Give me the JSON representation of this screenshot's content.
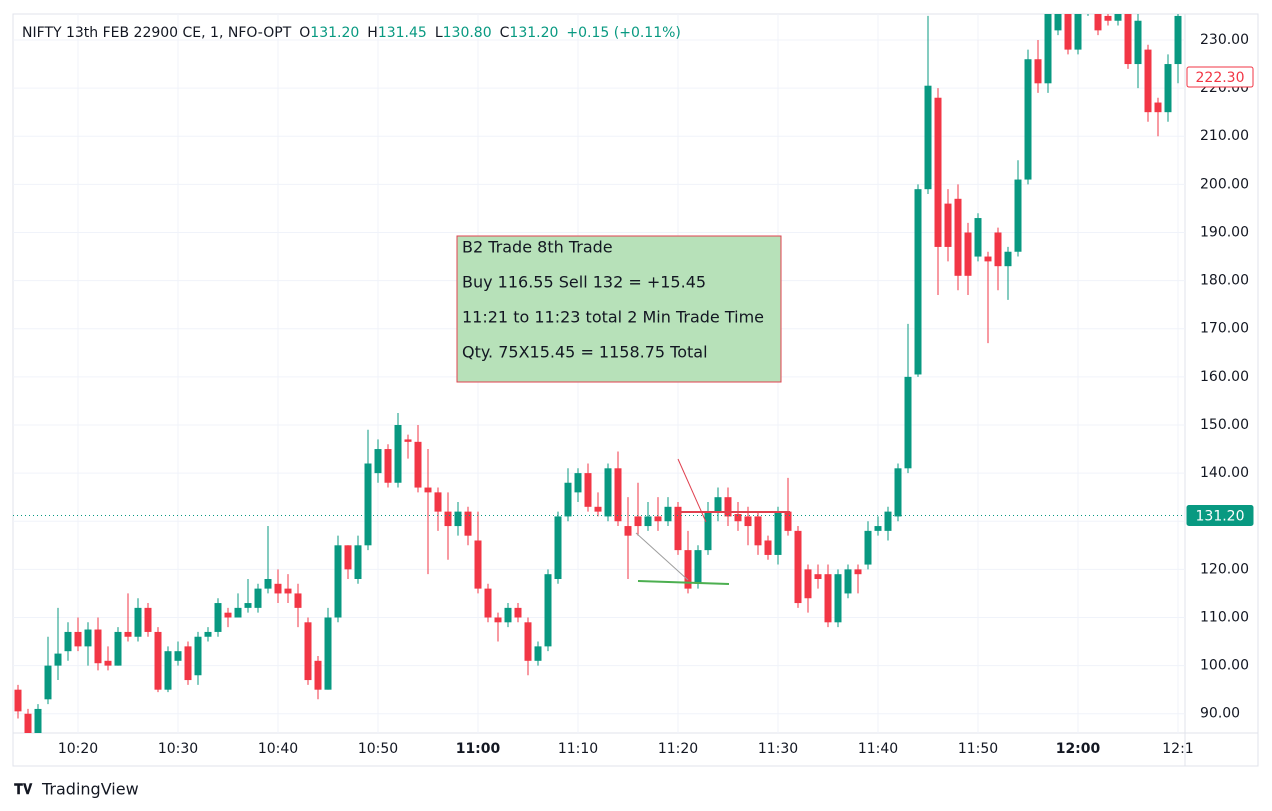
{
  "chart_data": {
    "type": "candlestick",
    "title": "NIFTY 13th FEB 22900 CE, 1, NFO-OPT",
    "ohlc_header": {
      "o_key": "O",
      "o": "131.20",
      "h_key": "H",
      "h": "131.45",
      "l_key": "L",
      "l": "130.80",
      "c_key": "C",
      "c": "131.20",
      "change": "+0.15 (+0.11%)"
    },
    "categories": [
      null,
      null,
      null,
      null,
      null,
      null,
      "10:20",
      null,
      null,
      null,
      null,
      null,
      null,
      null,
      null,
      null,
      "10:30",
      null,
      null,
      null,
      null,
      null,
      null,
      null,
      null,
      null,
      "10:40",
      null,
      null,
      null,
      null,
      null,
      null,
      null,
      null,
      null,
      "10:50",
      null,
      null,
      null,
      null,
      null,
      null,
      null,
      null,
      null,
      "11:00",
      null,
      null,
      null,
      null,
      null,
      null,
      null,
      null,
      null,
      "11:10",
      null,
      null,
      null,
      null,
      null,
      null,
      null,
      null,
      null,
      "11:20",
      null,
      null,
      null,
      null,
      null,
      null,
      null,
      null,
      null,
      "11:30",
      null,
      null,
      null,
      null,
      null,
      null,
      null,
      null,
      null,
      "11:40",
      null,
      null,
      null,
      null,
      null,
      null,
      null,
      null,
      null,
      "11:50",
      null,
      null,
      null,
      null,
      null,
      null,
      null,
      null,
      null,
      "12:00",
      null,
      null,
      null,
      null,
      null,
      null,
      null,
      null,
      null,
      "12:1"
    ],
    "open": [
      95,
      90,
      86,
      93,
      100,
      103,
      107,
      104,
      107.5,
      101,
      100,
      107,
      106,
      112,
      107,
      95,
      101,
      104,
      98,
      106,
      107,
      111,
      110,
      112,
      112,
      116,
      117,
      116,
      115,
      109,
      101,
      95,
      110,
      125,
      118,
      125,
      140,
      145,
      138,
      147,
      146.5,
      137,
      136,
      132,
      129,
      132,
      126,
      116,
      110,
      109,
      112,
      109,
      101,
      104,
      118,
      131,
      136,
      140,
      133,
      131,
      141,
      129,
      131,
      129,
      131,
      130,
      133,
      124,
      117,
      124,
      132,
      135,
      131.5,
      131,
      131,
      126,
      123,
      132,
      128,
      120,
      119,
      119,
      109,
      115,
      120,
      121,
      128,
      128,
      131,
      141,
      160.5,
      199,
      218,
      196,
      197,
      190,
      185,
      185,
      190,
      183,
      186,
      201,
      226,
      221,
      232,
      236,
      228,
      236,
      240,
      235,
      234,
      236,
      225,
      228,
      217,
      215,
      225
    ],
    "high": [
      96,
      91,
      92,
      106,
      112,
      109,
      110,
      109,
      110,
      104,
      108,
      115,
      114,
      113,
      108,
      104,
      105,
      105,
      107,
      108,
      114,
      112,
      115,
      118,
      117,
      129,
      120,
      119,
      117,
      110,
      102,
      112,
      127,
      125,
      127,
      149,
      147,
      146,
      152.5,
      148,
      150,
      145,
      137,
      136,
      134,
      133,
      132,
      117,
      111,
      113,
      113,
      110,
      105,
      120,
      132,
      141,
      141,
      142,
      136,
      142,
      144.5,
      135,
      138,
      134,
      135,
      135,
      134,
      128,
      125,
      134,
      137,
      137,
      134,
      133,
      132,
      127,
      133,
      139,
      129,
      121,
      121,
      121,
      120,
      121,
      121,
      130,
      131,
      133,
      142,
      171,
      200,
      235,
      220,
      199,
      200,
      192,
      194,
      186,
      191,
      187,
      205,
      228,
      230,
      236,
      242,
      238,
      240,
      242,
      241,
      236,
      240,
      237,
      236,
      229,
      218,
      227,
      236
    ],
    "low": [
      89,
      84,
      85,
      92,
      97,
      101,
      103,
      100,
      99,
      99,
      100,
      105,
      105,
      106,
      94.5,
      94.5,
      100,
      96,
      96,
      105,
      106,
      108,
      110,
      111,
      111,
      115,
      113,
      113,
      108,
      96,
      93,
      95,
      109,
      118,
      117,
      124,
      138,
      137,
      137,
      143,
      136,
      119,
      128,
      122,
      127,
      125,
      115,
      109,
      105,
      108,
      109,
      98,
      100,
      103,
      117,
      130,
      134,
      132,
      131,
      130,
      129,
      118,
      127,
      128,
      128,
      129,
      123,
      115,
      116,
      123,
      130,
      129,
      128,
      125,
      123,
      122,
      121,
      127,
      112,
      111,
      116,
      108,
      108,
      114,
      115,
      120,
      127,
      126,
      130,
      140,
      160,
      198,
      177,
      184,
      178,
      177,
      184,
      167,
      178,
      176,
      185,
      200,
      219,
      219,
      231,
      227,
      227,
      235,
      231,
      233,
      233,
      224,
      220,
      213,
      210,
      213,
      221
    ],
    "close": [
      90.5,
      86,
      91,
      100,
      102.5,
      107,
      104,
      107.5,
      100.5,
      100,
      107,
      106,
      112,
      107,
      95,
      103,
      103,
      97,
      106,
      107,
      113,
      110,
      112,
      113,
      116,
      118,
      115,
      115,
      112,
      97,
      95,
      110,
      125,
      120,
      125,
      142,
      145,
      138,
      150,
      146.5,
      137,
      136,
      132,
      129,
      132,
      127,
      116,
      110,
      109,
      112,
      110,
      101,
      104,
      119,
      131,
      138,
      140,
      133,
      132,
      141,
      130,
      127,
      129,
      131,
      130,
      133,
      124,
      116,
      124,
      132,
      135,
      131,
      130,
      129,
      125,
      123,
      132,
      128,
      113,
      114,
      118,
      109,
      119,
      120,
      119,
      128,
      129,
      132,
      141,
      160,
      199,
      220.5,
      187,
      187,
      181,
      181,
      193,
      184,
      183,
      186,
      201,
      226,
      221,
      236,
      240,
      228,
      236,
      240,
      232,
      234,
      238,
      225,
      234,
      215,
      215,
      225,
      235
    ],
    "up_color": "#089981",
    "down_color": "#f23645",
    "ylim": [
      86,
      235.4
    ],
    "yticks": [
      {
        "value": 90,
        "label": "90.00"
      },
      {
        "value": 100,
        "label": "100.00"
      },
      {
        "value": 110,
        "label": "110.00"
      },
      {
        "value": 120,
        "label": "120.00"
      },
      {
        "value": 130,
        "label": "130.00"
      },
      {
        "value": 140,
        "label": "140.00"
      },
      {
        "value": 150,
        "label": "150.00"
      },
      {
        "value": 160,
        "label": "160.00"
      },
      {
        "value": 170,
        "label": "170.00"
      },
      {
        "value": 180,
        "label": "180.00"
      },
      {
        "value": 190,
        "label": "190.00"
      },
      {
        "value": 200,
        "label": "200.00"
      },
      {
        "value": 210,
        "label": "210.00"
      },
      {
        "value": 220,
        "label": "220.00"
      },
      {
        "value": 230,
        "label": "230.00"
      }
    ],
    "grid": true,
    "price_lines": [
      {
        "value": 131.2,
        "label": "131.20",
        "color": "#089981",
        "dotted": true
      },
      {
        "value": 222.3,
        "label": "222.30",
        "color": "#f23645",
        "dotted": false
      }
    ],
    "annotation": {
      "lines": [
        "B2 Trade 8th Trade",
        "Buy 116.55 Sell 132 = +15.45",
        "11:21 to 11:23 total  2 Min Trade Time",
        "Qty. 75X15.45 = 1158.75 Total"
      ]
    },
    "footer": "TradingView"
  }
}
